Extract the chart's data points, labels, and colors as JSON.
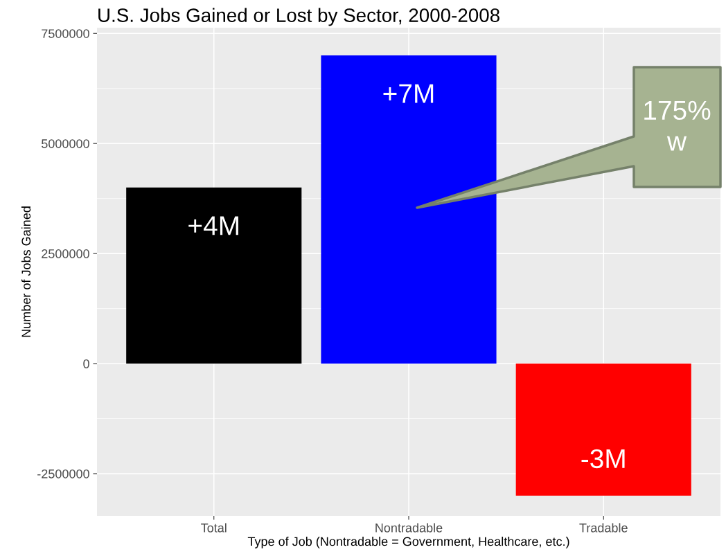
{
  "chart_data": {
    "type": "bar",
    "title": "U.S. Jobs Gained or Lost by Sector, 2000-2008",
    "xlabel": "Type of Job (Nontradable = Government, Healthcare, etc.)",
    "ylabel": "Number of Jobs Gained",
    "categories": [
      "Total",
      "Nontradable",
      "Tradable"
    ],
    "values": [
      4000000,
      7000000,
      -3000000
    ],
    "colors": [
      "#000000",
      "#0000ff",
      "#ff0000"
    ],
    "value_labels": [
      "+4M",
      "+7M",
      "-3M"
    ],
    "ylim": [
      -3460000,
      7630000
    ],
    "yticks": [
      -2500000,
      0,
      2500000,
      5000000,
      7500000
    ],
    "grid": true,
    "annotations": [
      "175%\nw"
    ]
  }
}
